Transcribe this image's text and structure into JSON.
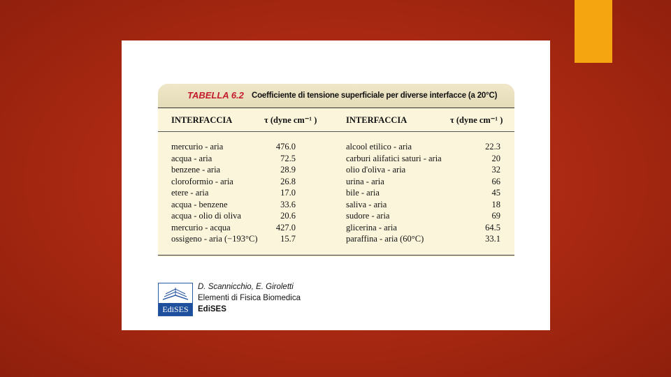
{
  "table": {
    "label": "TABELLA 6.2",
    "caption": "Coefficiente di tensione superficiale per diverse interfacce (a 20°C)",
    "columns": [
      "INTERFACCIA",
      "τ (dyne cm⁻¹ )",
      "INTERFACCIA",
      "τ (dyne cm⁻¹ )"
    ],
    "rows": [
      [
        "mercurio - aria",
        "476.0",
        "alcool etilico - aria",
        "22.3"
      ],
      [
        "acqua - aria",
        "72.5",
        "carburi alifatici saturi - aria",
        "20"
      ],
      [
        "benzene - aria",
        "28.9",
        "olio d'oliva - aria",
        "32"
      ],
      [
        "cloroformio - aria",
        "26.8",
        "urina - aria",
        "66"
      ],
      [
        "etere - aria",
        "17.0",
        "bile - aria",
        "45"
      ],
      [
        "acqua - benzene",
        "33.6",
        "saliva - aria",
        "18"
      ],
      [
        "acqua - olio di oliva",
        "20.6",
        "sudore - aria",
        "69"
      ],
      [
        "mercurio - acqua",
        "427.0",
        "glicerina - aria",
        "64.5"
      ],
      [
        "ossigeno - aria (−193°C)",
        "15.7",
        "paraffina - aria (60°C)",
        "33.1"
      ]
    ]
  },
  "credit": {
    "logo_text": "EdiSES",
    "authors": "D. Scannicchio, E. Giroletti",
    "book_title": "Elementi di Fisica Biomedica",
    "publisher": "EdiSES"
  },
  "colors": {
    "background": "#b52e16",
    "accent": "#f4a510",
    "table_label": "#c41c2c",
    "table_fill": "#fbf5dc",
    "logo_blue": "#1e4f9c"
  }
}
